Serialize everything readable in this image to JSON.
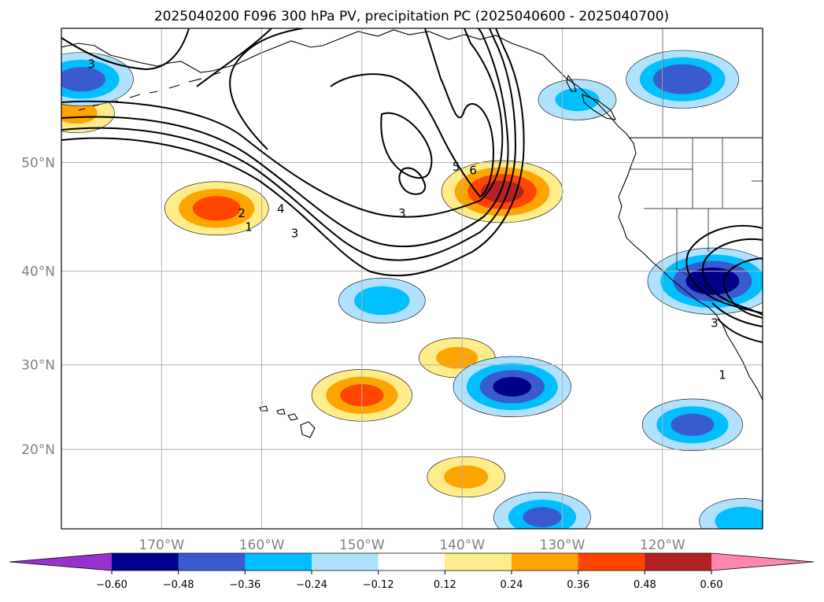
{
  "chart_data": {
    "type": "heatmap",
    "title": "2025040200 F096 300 hPa PV, precipitation PC (2025040600 - 2025040700)",
    "map": {
      "lon_range": [
        -180,
        -110
      ],
      "lat_range": [
        10,
        60
      ],
      "grid": true,
      "projection": "mercator"
    },
    "x_ticks": [
      {
        "lon": -170,
        "label": "170°W"
      },
      {
        "lon": -160,
        "label": "160°W"
      },
      {
        "lon": -150,
        "label": "150°W"
      },
      {
        "lon": -140,
        "label": "140°W"
      },
      {
        "lon": -130,
        "label": "130°W"
      },
      {
        "lon": -120,
        "label": "120°W"
      }
    ],
    "y_ticks": [
      {
        "lat": 20,
        "label": "20°N"
      },
      {
        "lat": 30,
        "label": "30°N"
      },
      {
        "lat": 40,
        "label": "40°N"
      },
      {
        "lat": 50,
        "label": "50°N"
      }
    ],
    "colorbar": {
      "levels": [
        "−0.60",
        "−0.48",
        "−0.36",
        "−0.24",
        "−0.12",
        "0.12",
        "0.24",
        "0.36",
        "0.48",
        "0.60"
      ],
      "colors": [
        "#9932cc",
        "#00008b",
        "#3a5bcf",
        "#00bfff",
        "#b0e2ff",
        "#ffffff",
        "#ffec8b",
        "#ffa500",
        "#ff4500",
        "#b22222",
        "#ff86b0"
      ],
      "extend": "both"
    },
    "pv_contour_labels": [
      {
        "text": "3",
        "lon": -177,
        "lat": 57.3
      },
      {
        "text": "1",
        "lon": -161.3,
        "lat": 43.9
      },
      {
        "text": "2",
        "lon": -162,
        "lat": 45.2
      },
      {
        "text": "3",
        "lon": -156.7,
        "lat": 43.3
      },
      {
        "text": "4",
        "lon": -158.1,
        "lat": 45.6
      },
      {
        "text": "3",
        "lon": -146,
        "lat": 45.2
      },
      {
        "text": "5",
        "lon": -140.6,
        "lat": 49.3
      },
      {
        "text": "6",
        "lon": -138.9,
        "lat": 49.0
      },
      {
        "text": "1",
        "lon": -114,
        "lat": 28.4
      },
      {
        "text": "3",
        "lon": -114.8,
        "lat": 34.2
      }
    ],
    "precip_anomalies": [
      {
        "sign": "positive",
        "lon": -164.5,
        "lat": 46.0,
        "peak": 0.4
      },
      {
        "sign": "positive",
        "lon": -136.0,
        "lat": 47.5,
        "peak": 0.5
      },
      {
        "sign": "positive",
        "lon": -150.0,
        "lat": 26.5,
        "peak": 0.38
      },
      {
        "sign": "positive",
        "lon": -139.6,
        "lat": 16.6,
        "peak": 0.25
      },
      {
        "sign": "positive",
        "lon": -140.5,
        "lat": 30.8,
        "peak": 0.24
      },
      {
        "sign": "positive",
        "lon": -178.5,
        "lat": 54.0,
        "peak": 0.24
      },
      {
        "sign": "negative",
        "lon": -178.0,
        "lat": 56.5,
        "peak": -0.4
      },
      {
        "sign": "negative",
        "lon": -118.0,
        "lat": 56.5,
        "peak": -0.45
      },
      {
        "sign": "negative",
        "lon": -148.0,
        "lat": 37.0,
        "peak": -0.3
      },
      {
        "sign": "negative",
        "lon": -135.0,
        "lat": 27.5,
        "peak": -0.48
      },
      {
        "sign": "negative",
        "lon": -115.0,
        "lat": 39.0,
        "peak": -0.55
      },
      {
        "sign": "negative",
        "lon": -117.0,
        "lat": 23.0,
        "peak": -0.38
      },
      {
        "sign": "negative",
        "lon": -132.0,
        "lat": 11.5,
        "peak": -0.36
      },
      {
        "sign": "negative",
        "lon": -112.0,
        "lat": 11.0,
        "peak": -0.3
      },
      {
        "sign": "negative",
        "lon": -128.5,
        "lat": 55.0,
        "peak": -0.25
      }
    ]
  }
}
